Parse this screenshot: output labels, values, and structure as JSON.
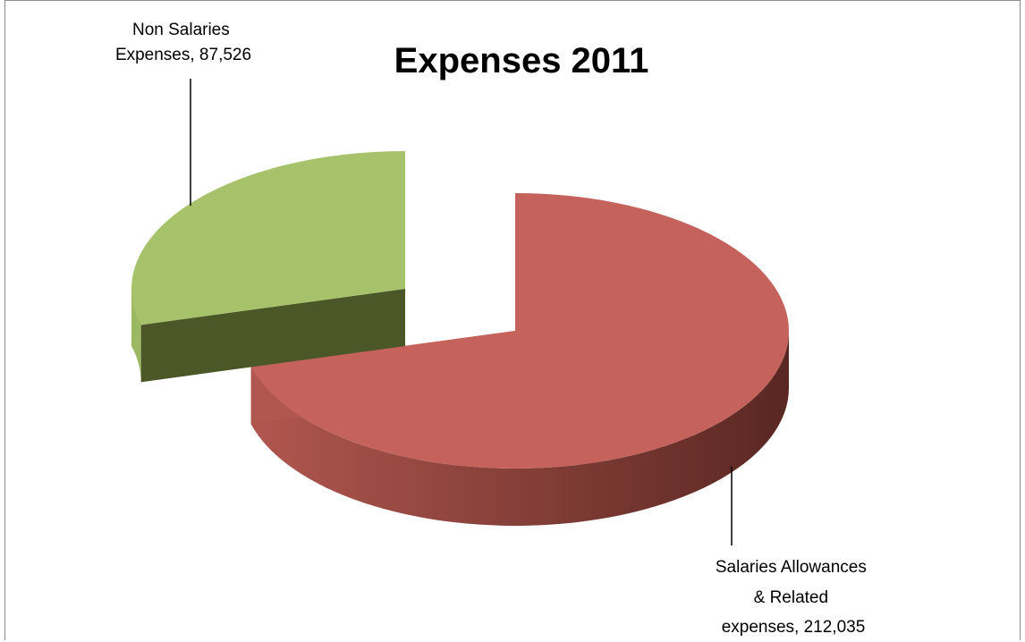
{
  "chart_data": {
    "type": "pie",
    "style": "3d-exploded",
    "title": "Expenses 2011",
    "slices": [
      {
        "name": "Salaries Allowances & Related expenses",
        "value": 212035,
        "label_lines": [
          "Salaries Allowances",
          "& Related",
          "expenses,  212,035"
        ],
        "color": "#c5625c",
        "side_light": "#b0574f",
        "side_dark": "#5a2722"
      },
      {
        "name": "Non Salaries Expenses",
        "value": 87526,
        "label_lines": [
          "Non Salaries",
          "Expenses,  87,526"
        ],
        "color": "#a6c26a",
        "side_light": "#9bb863",
        "side_dark": "#4b5726"
      }
    ],
    "legend": "none"
  }
}
